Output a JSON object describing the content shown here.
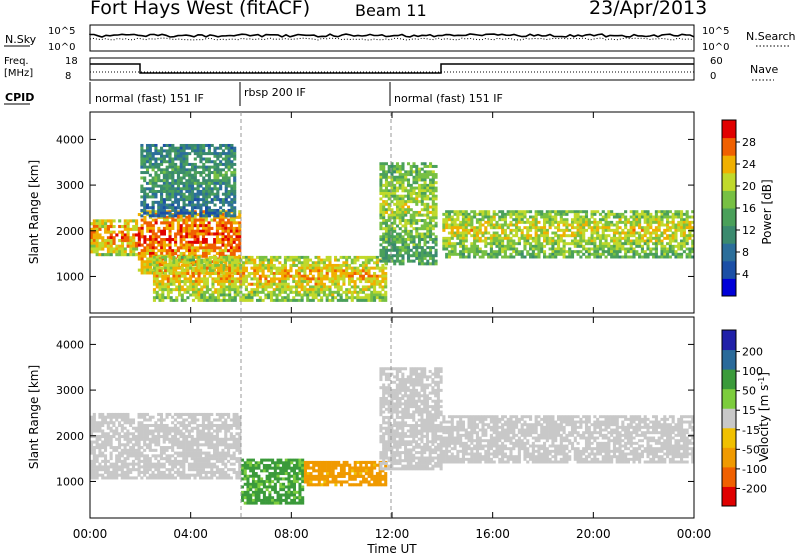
{
  "header": {
    "station": "Fort Hays West (fitACF)",
    "beam": "Beam 11",
    "date": "23/Apr/2013"
  },
  "top_panels": {
    "nsky": {
      "label": "N.Sky",
      "ticks": [
        "10^5",
        "10^0"
      ]
    },
    "nsearch": {
      "label": "N.Search",
      "ticks": [
        "10^5",
        "10^0"
      ]
    },
    "freq": {
      "label": "Freq.",
      "unit": "[MHz]",
      "ticks": [
        "18",
        "8"
      ]
    },
    "nave": {
      "label": "Nave",
      "ticks": [
        "60",
        "0"
      ]
    },
    "cpid": {
      "label": "CPID",
      "segments": [
        "normal (fast) 151 IF",
        "rbsp 200 IF",
        "normal (fast) 151 IF"
      ]
    }
  },
  "colors": {
    "power": [
      "#0000d8",
      "#1b4fa6",
      "#2b6e9a",
      "#3a8a6e",
      "#4aa05a",
      "#77c043",
      "#c0d92b",
      "#f0b000",
      "#f06000",
      "#e00000"
    ],
    "velocity": [
      "#e00000",
      "#f06000",
      "#f09a00",
      "#f0c000",
      "#c8c8c8",
      "#7ccc3c",
      "#3a9a3a",
      "#2a6a9a",
      "#2020a8"
    ]
  },
  "chart_data": [
    {
      "type": "heatmap",
      "title": "Power [dB]",
      "ylabel": "Slant Range [km]",
      "xlabel": "Time UT",
      "x_ticks": [
        "00:00",
        "04:00",
        "08:00",
        "12:00",
        "16:00",
        "20:00",
        "00:00"
      ],
      "ylim": [
        200,
        4600
      ],
      "y_ticks": [
        1000,
        2000,
        3000,
        4000
      ],
      "colorbar": {
        "label": "Power [dB]",
        "ticks": [
          4,
          8,
          12,
          16,
          20,
          24,
          28
        ],
        "range": [
          0,
          32
        ]
      },
      "bands": [
        {
          "t": [
            0.0,
            1.9
          ],
          "r": [
            1450,
            2250
          ],
          "v": 20
        },
        {
          "t": [
            1.9,
            6.0
          ],
          "r": [
            1050,
            2450
          ],
          "v": 22
        },
        {
          "t": [
            2.0,
            5.8
          ],
          "r": [
            2300,
            3900
          ],
          "v": 8
        },
        {
          "t": [
            2.5,
            11.8
          ],
          "r": [
            450,
            1450
          ],
          "v": 18
        },
        {
          "t": [
            11.5,
            13.8
          ],
          "r": [
            1250,
            3500
          ],
          "v": 14
        },
        {
          "t": [
            14.0,
            24.0
          ],
          "r": [
            1400,
            2450
          ],
          "v": 16
        }
      ]
    },
    {
      "type": "heatmap",
      "title": "Velocity [m s^-1]",
      "ylabel": "Slant Range [km]",
      "xlabel": "Time UT",
      "x_ticks": [
        "00:00",
        "04:00",
        "08:00",
        "12:00",
        "16:00",
        "20:00",
        "00:00"
      ],
      "ylim": [
        200,
        4600
      ],
      "y_ticks": [
        1000,
        2000,
        3000,
        4000
      ],
      "colorbar": {
        "label": "Velocity [m s^-1]",
        "ticks": [
          -200,
          -100,
          -50,
          -15,
          15,
          50,
          100,
          200
        ]
      },
      "bands": [
        {
          "t": [
            0.0,
            6.0
          ],
          "r": [
            1050,
            2500
          ],
          "v": 0
        },
        {
          "t": [
            6.0,
            8.5
          ],
          "r": [
            500,
            1500
          ],
          "v": 40
        },
        {
          "t": [
            8.5,
            11.8
          ],
          "r": [
            900,
            1450
          ],
          "v": -45
        },
        {
          "t": [
            11.5,
            14.0
          ],
          "r": [
            1250,
            3500
          ],
          "v": 0
        },
        {
          "t": [
            14.0,
            24.0
          ],
          "r": [
            1400,
            2450
          ],
          "v": 0
        }
      ]
    }
  ]
}
